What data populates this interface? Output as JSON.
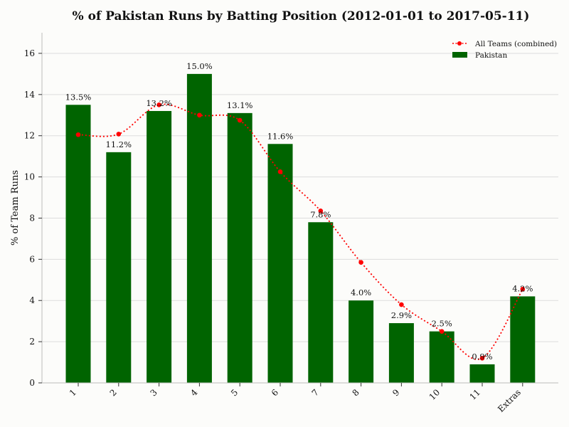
{
  "chart_data": {
    "type": "bar",
    "title": "% of Pakistan Runs by Batting Position (2012-01-01 to 2017-05-11)",
    "xlabel": "",
    "ylabel": "% of Team Runs",
    "ylim": [
      0,
      17
    ],
    "yticks": [
      0,
      2,
      4,
      6,
      8,
      10,
      12,
      14,
      16
    ],
    "grid": "horizontal",
    "legend_position": "top-right",
    "categories": [
      "1",
      "2",
      "3",
      "4",
      "5",
      "6",
      "7",
      "8",
      "9",
      "10",
      "11",
      "Extras"
    ],
    "series": [
      {
        "name": "Pakistan",
        "kind": "bar",
        "color": "#006400",
        "values": [
          13.5,
          11.2,
          13.2,
          15.0,
          13.1,
          11.6,
          7.8,
          4.0,
          2.9,
          2.5,
          0.9,
          4.2
        ],
        "labels": [
          "13.5%",
          "11.2%",
          "13.2%",
          "15.0%",
          "13.1%",
          "11.6%",
          "7.8%",
          "4.0%",
          "2.9%",
          "2.5%",
          "0.9%",
          "4.2%"
        ]
      },
      {
        "name": "All Teams (combined)",
        "kind": "line",
        "style": "dotted",
        "color": "#ff0000",
        "values": [
          12.05,
          12.08,
          13.5,
          13.0,
          12.75,
          10.25,
          8.35,
          5.85,
          3.8,
          2.5,
          1.2,
          4.55
        ]
      }
    ]
  }
}
